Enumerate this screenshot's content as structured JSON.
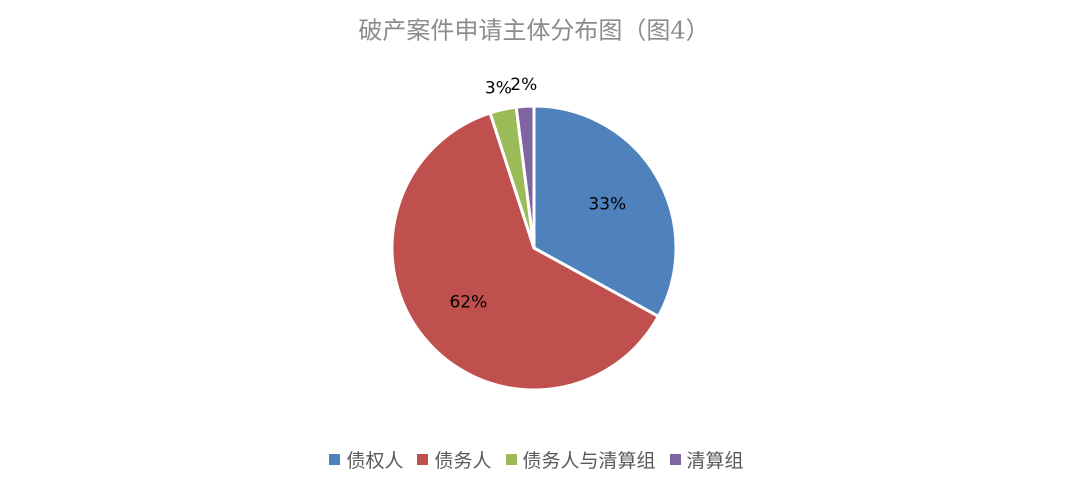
{
  "chart_data": {
    "type": "pie",
    "title": "破产案件申请主体分布图（图4）",
    "categories": [
      "债权人",
      "债务人",
      "债务人与清算组",
      "清算组"
    ],
    "values": [
      33,
      62,
      3,
      2
    ],
    "value_labels": [
      "33%",
      "62%",
      "3%",
      "2%"
    ],
    "colors": [
      "#4f81bd",
      "#c0504d",
      "#9bbb59",
      "#8064a2"
    ],
    "legend": "bottom"
  }
}
